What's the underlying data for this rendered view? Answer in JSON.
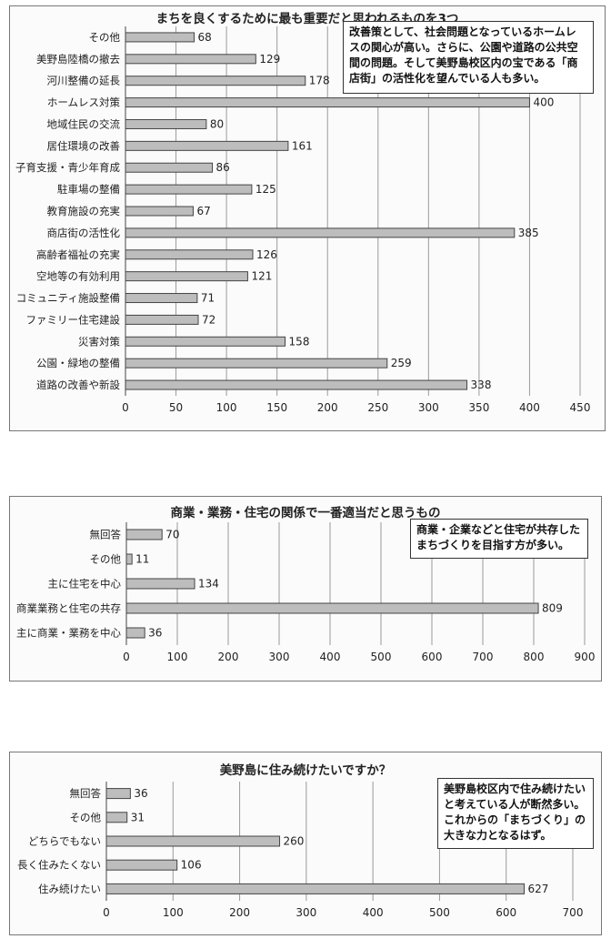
{
  "chart_data": [
    {
      "type": "bar",
      "orientation": "horizontal",
      "title": "まちを良くするために最も重要だと思われるものを3つ",
      "categories": [
        "その他",
        "美野島陸橋の撤去",
        "河川整備の延長",
        "ホームレス対策",
        "地域住民の交流",
        "居住環境の改善",
        "子育支援・青少年育成",
        "駐車場の整備",
        "教育施設の充実",
        "商店街の活性化",
        "高齢者福祉の充実",
        "空地等の有効利用",
        "コミュニティ施設整備",
        "ファミリー住宅建設",
        "災害対策",
        "公園・緑地の整備",
        "道路の改善や新設"
      ],
      "values": [
        68,
        129,
        178,
        400,
        80,
        161,
        86,
        125,
        67,
        385,
        126,
        121,
        71,
        72,
        158,
        259,
        338
      ],
      "xlim": [
        0,
        450
      ],
      "ticks": [
        "0",
        "50",
        "100",
        "150",
        "200",
        "250",
        "300",
        "350",
        "400",
        "450"
      ],
      "grid": true,
      "note": [
        "改善策として、社会問題となっているホームレ",
        "スの関心が高い。さらに、公園や道路の公共空",
        "間の問題。そして美野島校区内の宝である「商",
        "店街」の活性化を望んでいる人も多い。"
      ]
    },
    {
      "type": "bar",
      "orientation": "horizontal",
      "title": "商業・業務・住宅の関係で一番適当だと思うもの",
      "categories": [
        "無回答",
        "その他",
        "主に住宅を中心",
        "商業業務と住宅の共存",
        "主に商業・業務を中心"
      ],
      "values": [
        70,
        11,
        134,
        809,
        36
      ],
      "xlim": [
        0,
        900
      ],
      "ticks": [
        "0",
        "100",
        "200",
        "300",
        "400",
        "500",
        "600",
        "700",
        "800",
        "900"
      ],
      "grid": true,
      "note": [
        "商業・企業などと住宅が共存した",
        "まちづくりを目指す方が多い。"
      ]
    },
    {
      "type": "bar",
      "orientation": "horizontal",
      "title": "美野島に住み続けたいですか？",
      "categories": [
        "無回答",
        "その他",
        "どちらでもない",
        "長く住みたくない",
        "住み続けたい"
      ],
      "values": [
        36,
        31,
        260,
        106,
        627
      ],
      "xlim": [
        0,
        700
      ],
      "ticks": [
        "0",
        "100",
        "200",
        "300",
        "400",
        "500",
        "600",
        "700"
      ],
      "grid": true,
      "note": [
        "美野島校区内で住み続けたい",
        "と考えている人が断然多い。",
        "これからの「まちづくり」の",
        "大きな力となるはず。"
      ]
    }
  ],
  "colors": {
    "bar_fill": "#bdbdbd",
    "bar_stroke": "#444444",
    "grid": "#9a9a9a"
  }
}
